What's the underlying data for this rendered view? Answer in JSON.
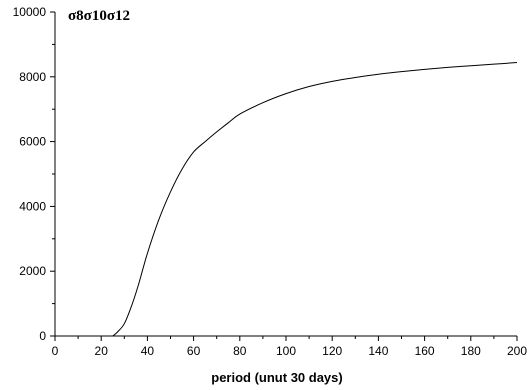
{
  "chart_data": {
    "type": "line",
    "title": "σ8σ10σ12",
    "xlabel": "period (unut 30 days)",
    "ylabel": "",
    "xlim": [
      0,
      200
    ],
    "ylim": [
      0,
      10000
    ],
    "x_major_ticks": [
      0,
      20,
      40,
      60,
      80,
      100,
      120,
      140,
      160,
      180,
      200
    ],
    "x_minor_step": 10,
    "y_major_ticks": [
      0,
      2000,
      4000,
      6000,
      8000,
      10000
    ],
    "y_minor_step": 1000,
    "grid": false,
    "legend": "none",
    "line_color": "#000000",
    "series": [
      {
        "x": [
          25,
          27,
          30,
          33,
          36,
          40,
          45,
          50,
          55,
          60,
          65,
          70,
          75,
          80,
          90,
          100,
          110,
          120,
          130,
          140,
          150,
          160,
          170,
          180,
          190,
          200
        ],
        "values": [
          0,
          120,
          380,
          900,
          1550,
          2550,
          3600,
          4450,
          5150,
          5680,
          6000,
          6300,
          6580,
          6850,
          7200,
          7480,
          7700,
          7860,
          7980,
          8080,
          8160,
          8230,
          8290,
          8340,
          8390,
          8440
        ]
      }
    ]
  }
}
